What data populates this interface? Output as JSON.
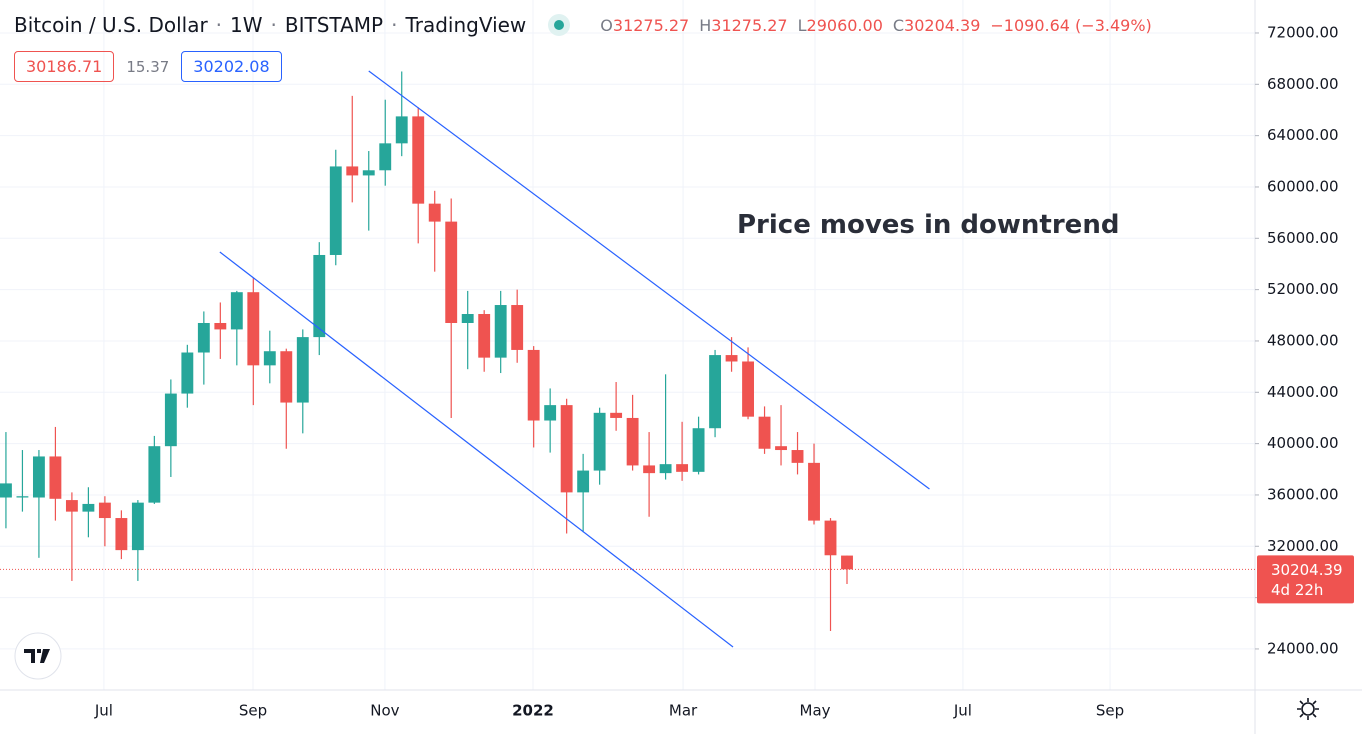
{
  "chart_data": {
    "type": "candlestick",
    "title": "Bitcoin / U.S. Dollar",
    "interval": "1W",
    "exchange": "BITSTAMP",
    "source": "TradingView",
    "ohlc_legend": {
      "O": "31275.27",
      "H": "31275.27",
      "L": "29060.00",
      "C": "30204.39",
      "change": "−1090.64 (−3.49%)"
    },
    "quote": {
      "bid": "30186.71",
      "spread": "15.37",
      "ask": "30202.08"
    },
    "annotation": "Price moves in downtrend",
    "up_color": "#26a69a",
    "down_color": "#ef5350",
    "line_color": "#2962ff",
    "grid": true,
    "categories": [
      null,
      null,
      null,
      null,
      null,
      null,
      null,
      null,
      null,
      null,
      null,
      null,
      null,
      null,
      null,
      null,
      null,
      null,
      null,
      null,
      null,
      null,
      null,
      null,
      null,
      null,
      null,
      null,
      null,
      null,
      null,
      null,
      null,
      null,
      null,
      null,
      null,
      null,
      null,
      null,
      null,
      null,
      null,
      null,
      null,
      null,
      null,
      null,
      null,
      null,
      null,
      null
    ],
    "open": [
      35800,
      35800,
      35800,
      39000,
      35600,
      34700,
      35400,
      34200,
      31700,
      35400,
      39800,
      43900,
      47100,
      49400,
      48900,
      51800,
      46100,
      47200,
      43200,
      48300,
      54700,
      61600,
      60900,
      61300,
      63400,
      65500,
      58700,
      57300,
      49400,
      50100,
      46700,
      50800,
      47300,
      41800,
      43000,
      36200,
      37900,
      42400,
      42000,
      38300,
      37700,
      38400,
      37800,
      41200,
      46900,
      46400,
      42100,
      39800,
      39500,
      38500,
      34000,
      31275.27
    ],
    "high": [
      40900,
      39500,
      39500,
      41300,
      36200,
      36600,
      35900,
      34800,
      35600,
      40600,
      45000,
      47700,
      50300,
      51000,
      51900,
      52900,
      48800,
      47400,
      48900,
      55700,
      62900,
      67100,
      62800,
      66800,
      69000,
      66200,
      59700,
      59100,
      51900,
      50400,
      51900,
      52000,
      47600,
      44300,
      43500,
      39200,
      42800,
      44800,
      43800,
      40900,
      45400,
      41700,
      42100,
      47300,
      48300,
      47500,
      42900,
      43000,
      40900,
      40000,
      34200,
      31275.27
    ],
    "low": [
      33400,
      34700,
      31100,
      34000,
      29300,
      32700,
      32000,
      31000,
      29300,
      35300,
      37400,
      42800,
      44600,
      46600,
      46100,
      43000,
      44700,
      39600,
      40800,
      46900,
      53900,
      58800,
      56600,
      60100,
      62400,
      55600,
      53400,
      42000,
      45800,
      45600,
      45500,
      46300,
      39700,
      39300,
      33000,
      33100,
      36800,
      41000,
      37900,
      34300,
      37200,
      37100,
      37600,
      40500,
      45600,
      41900,
      39200,
      38300,
      37600,
      33700,
      25400,
      29060
    ],
    "close": [
      36900,
      35900,
      39000,
      35700,
      34700,
      35300,
      34200,
      31700,
      35400,
      39800,
      43900,
      47100,
      49400,
      48900,
      51800,
      46100,
      47200,
      43200,
      48300,
      54700,
      61600,
      60900,
      61300,
      63400,
      65500,
      58700,
      57300,
      49400,
      50100,
      46700,
      50800,
      47300,
      41800,
      43000,
      36200,
      37900,
      42400,
      42000,
      38300,
      37700,
      38400,
      37800,
      41200,
      46900,
      46400,
      42100,
      39600,
      39500,
      38500,
      34000,
      31300,
      30204.39
    ],
    "xlim": [
      -0.36,
      75.74
    ],
    "xticks": [
      {
        "value": 5.94,
        "label": "Jul"
      },
      {
        "value": 14.98,
        "label": "Sep"
      },
      {
        "value": 22.98,
        "label": "Nov"
      },
      {
        "value": 31.96,
        "label": "2022"
      },
      {
        "value": 41.06,
        "label": "Mar"
      },
      {
        "value": 49.06,
        "label": "May"
      },
      {
        "value": 58.03,
        "label": "Jul"
      },
      {
        "value": 66.95,
        "label": "Sep"
      }
    ],
    "ylim": [
      20800,
      74570
    ],
    "yticks": [
      {
        "value": 24000,
        "label": "24000.00"
      },
      {
        "value": 28000,
        "label": "28000.00"
      },
      {
        "value": 32000,
        "label": "32000.00"
      },
      {
        "value": 36000,
        "label": "36000.00"
      },
      {
        "value": 40000,
        "label": "40000.00"
      },
      {
        "value": 44000,
        "label": "44000.00"
      },
      {
        "value": 48000,
        "label": "48000.00"
      },
      {
        "value": 52000,
        "label": "52000.00"
      },
      {
        "value": 56000,
        "label": "56000.00"
      },
      {
        "value": 60000,
        "label": "60000.00"
      },
      {
        "value": 64000,
        "label": "64000.00"
      },
      {
        "value": 68000,
        "label": "68000.00"
      },
      {
        "value": 72000,
        "label": "72000.00"
      }
    ],
    "trendlines": [
      {
        "x": [
          22.0,
          56.0
        ],
        "y": [
          69039,
          36463
        ]
      },
      {
        "x": [
          12.97,
          44.09
        ],
        "y": [
          54933,
          24150
        ]
      }
    ],
    "last_price": {
      "value": 30204.39,
      "countdown": "4d 22h"
    }
  }
}
